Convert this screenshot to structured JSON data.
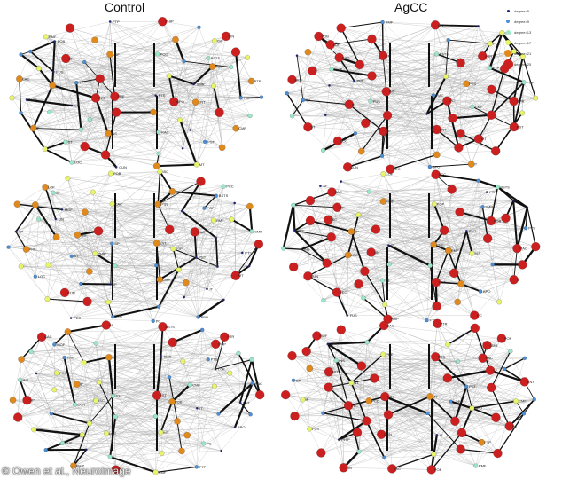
{
  "columns": [
    {
      "title": "Control"
    },
    {
      "title": "AgCC"
    }
  ],
  "rows": 3,
  "legend": [
    {
      "label": "degree=5",
      "color": "#1a237e"
    },
    {
      "label": "degree=9",
      "color": "#4a90d9"
    },
    {
      "label": "degree=13",
      "color": "#9be8c8"
    },
    {
      "label": "degree=17",
      "color": "#e8f56a"
    },
    {
      "label": "degree=21",
      "color": "#e08a1e"
    },
    {
      "label": "degree=25",
      "color": "#cc1f1f"
    }
  ],
  "node_labels": [
    "FTP",
    "RMF",
    "POB",
    "LOF",
    "SF",
    "CAC",
    "MOF",
    "TP",
    "PRE",
    "INS",
    "SP",
    "IP",
    "ST",
    "LOC",
    "CUN",
    "PEC",
    "FUS",
    "PHIP",
    "LIN",
    "ISC",
    "PCC",
    "BSTS",
    "PTR",
    "POP",
    "SMR",
    "PTS",
    "RAC",
    "ENT",
    "CMF",
    "PST",
    "MT",
    "IT",
    "BPO",
    "PC"
  ],
  "credit": "© Owen et al., NeuroImage"
}
